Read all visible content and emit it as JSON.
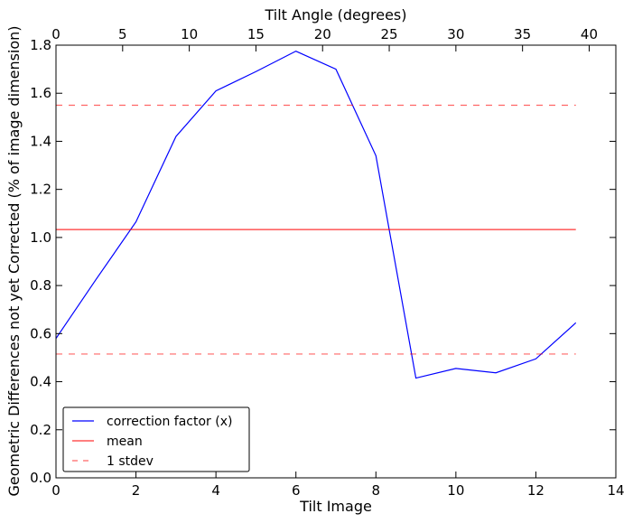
{
  "chart_data": {
    "type": "line",
    "title": "",
    "xlabel": "Tilt Image",
    "ylabel": "Geometric Differences not yet Corrected (% of image dimension)",
    "x2label": "Tilt Angle (degrees)",
    "xlim": [
      0,
      14
    ],
    "ylim": [
      0,
      1.8
    ],
    "x2lim": [
      0,
      42
    ],
    "xticks": [
      0,
      2,
      4,
      6,
      8,
      10,
      12,
      14
    ],
    "yticks": [
      0.0,
      0.2,
      0.4,
      0.6,
      0.8,
      1.0,
      1.2,
      1.4,
      1.6,
      1.8
    ],
    "ytick_labels": [
      "0.0",
      "0.2",
      "0.4",
      "0.6",
      "0.8",
      "1.0",
      "1.2",
      "1.4",
      "1.6",
      "1.8"
    ],
    "x2ticks": [
      0,
      5,
      10,
      15,
      20,
      25,
      30,
      35,
      40
    ],
    "grid": false,
    "legend_position": "lower-left",
    "series": [
      {
        "name": "correction factor (x)",
        "color": "#0000ff",
        "style": "solid",
        "x": [
          0,
          1,
          2,
          3,
          4,
          5,
          6,
          7,
          8,
          9,
          10,
          11,
          12,
          13
        ],
        "y": [
          0.58,
          0.825,
          1.065,
          1.42,
          1.61,
          1.69,
          1.775,
          1.7,
          1.34,
          0.415,
          0.455,
          0.437,
          0.495,
          0.645
        ]
      },
      {
        "name": "mean",
        "color": "#ff0000",
        "style": "solid",
        "x": [
          0,
          13
        ],
        "y": [
          1.033,
          1.033
        ]
      },
      {
        "name": "1 stdev",
        "color": "#ff0000",
        "style": "dashed",
        "x": [
          0,
          13
        ],
        "y": [
          1.55,
          1.55
        ]
      },
      {
        "name": "",
        "color": "#ff0000",
        "style": "dashed",
        "x": [
          0,
          13
        ],
        "y": [
          0.515,
          0.515
        ]
      }
    ]
  }
}
